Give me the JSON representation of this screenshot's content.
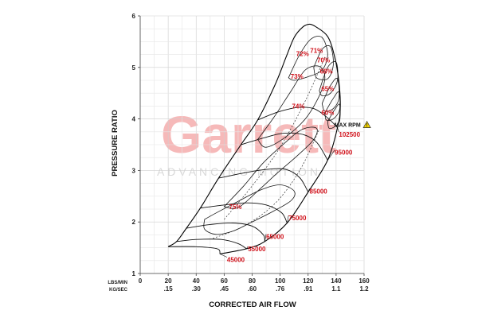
{
  "chart_data": {
    "type": "compressor-map",
    "xlabel": "CORRECTED AIR FLOW",
    "ylabel": "PRESSURE RATIO",
    "x_unit_primary": "LBS/MIN",
    "x_unit_secondary": "KG/SEC",
    "xlim": [
      0,
      160
    ],
    "ylim": [
      1,
      6
    ],
    "x_ticks": [
      0,
      20,
      40,
      60,
      80,
      100,
      120,
      140,
      160
    ],
    "x_ticks_secondary": [
      {
        "x": 20,
        "label": ".15"
      },
      {
        "x": 40,
        "label": ".30"
      },
      {
        "x": 60,
        "label": ".45"
      },
      {
        "x": 80,
        "label": ".60"
      },
      {
        "x": 100,
        "label": ".76"
      },
      {
        "x": 120,
        "label": ".91"
      },
      {
        "x": 140,
        "label": "1.1"
      },
      {
        "x": 160,
        "label": "1.2"
      }
    ],
    "y_ticks": [
      1,
      2,
      3,
      4,
      5,
      6
    ],
    "grid": true,
    "watermark": {
      "text": "Garrett",
      "subtext": "ADVANCING MOTION"
    },
    "max_rpm_label": "MAX RPM",
    "max_rpm_point": {
      "x": 141,
      "y": 3.83
    },
    "speed_lines": [
      {
        "rpm": "45000",
        "points": [
          [
            20,
            1.52
          ],
          [
            40,
            1.52
          ],
          [
            55,
            1.48
          ],
          [
            57,
            1.38
          ]
        ],
        "label_at": [
          62,
          1.27
        ]
      },
      {
        "rpm": "55000",
        "points": [
          [
            26,
            1.62
          ],
          [
            40,
            1.66
          ],
          [
            58,
            1.66
          ],
          [
            70,
            1.58
          ],
          [
            76,
            1.48
          ]
        ],
        "label_at": [
          77,
          1.48
        ]
      },
      {
        "rpm": "65000",
        "points": [
          [
            33,
            1.88
          ],
          [
            50,
            1.95
          ],
          [
            66,
            1.98
          ],
          [
            80,
            1.92
          ],
          [
            88,
            1.75
          ],
          [
            89,
            1.62
          ]
        ],
        "label_at": [
          90,
          1.72
        ]
      },
      {
        "rpm": "75000",
        "points": [
          [
            43,
            2.27
          ],
          [
            60,
            2.33
          ],
          [
            76,
            2.37
          ],
          [
            90,
            2.33
          ],
          [
            101,
            2.18
          ],
          [
            105,
            1.98
          ]
        ],
        "label_at": [
          106,
          2.08
        ]
      },
      {
        "rpm": "85000",
        "points": [
          [
            56,
            2.85
          ],
          [
            74,
            2.95
          ],
          [
            90,
            3.02
          ],
          [
            104,
            3.02
          ],
          [
            114,
            2.86
          ],
          [
            120,
            2.58
          ]
        ],
        "label_at": [
          121,
          2.6
        ]
      },
      {
        "rpm": "95000",
        "points": [
          [
            72,
            3.5
          ],
          [
            88,
            3.63
          ],
          [
            102,
            3.72
          ],
          [
            116,
            3.7
          ],
          [
            126,
            3.55
          ],
          [
            134,
            3.2
          ]
        ],
        "label_at": [
          139,
          3.35
        ]
      },
      {
        "rpm": "102500",
        "points": [
          [
            84,
            3.98
          ],
          [
            98,
            4.13
          ],
          [
            112,
            4.22
          ],
          [
            124,
            4.2
          ],
          [
            134,
            4.02
          ],
          [
            141,
            3.83
          ]
        ],
        "label_at": [
          142,
          3.7
        ]
      }
    ],
    "surge_line": [
      [
        20,
        1.52
      ],
      [
        26,
        1.62
      ],
      [
        33,
        1.88
      ],
      [
        43,
        2.27
      ],
      [
        56,
        2.85
      ],
      [
        72,
        3.5
      ],
      [
        84,
        3.98
      ],
      [
        96,
        4.64
      ],
      [
        104,
        5.18
      ],
      [
        110,
        5.58
      ],
      [
        116,
        5.78
      ],
      [
        121,
        5.84
      ],
      [
        125,
        5.8
      ]
    ],
    "choke_line": [
      [
        57,
        1.38
      ],
      [
        76,
        1.48
      ],
      [
        89,
        1.62
      ],
      [
        105,
        1.98
      ],
      [
        120,
        2.58
      ],
      [
        134,
        3.2
      ],
      [
        141,
        3.83
      ],
      [
        143,
        4.22
      ],
      [
        142,
        4.72
      ],
      [
        139,
        5.2
      ],
      [
        134,
        5.6
      ],
      [
        125,
        5.8
      ]
    ],
    "efficiency_islands": [
      {
        "label": "75%",
        "points": [
          [
            46,
            2.05
          ],
          [
            56,
            2.2
          ],
          [
            70,
            2.4
          ],
          [
            86,
            2.62
          ],
          [
            100,
            2.72
          ],
          [
            110,
            2.6
          ],
          [
            108,
            2.42
          ],
          [
            96,
            2.22
          ],
          [
            80,
            2.0
          ],
          [
            66,
            1.82
          ],
          [
            54,
            1.76
          ],
          [
            46,
            1.86
          ],
          [
            46,
            2.05
          ]
        ],
        "label_at": [
          68,
          2.25
        ]
      },
      {
        "label": "74%",
        "points": [
          [
            60,
            2.3
          ],
          [
            74,
            2.7
          ],
          [
            88,
            3.15
          ],
          [
            104,
            3.55
          ],
          [
            116,
            3.8
          ],
          [
            126,
            3.82
          ],
          [
            124,
            3.6
          ],
          [
            112,
            3.28
          ],
          [
            98,
            2.95
          ],
          [
            84,
            2.6
          ],
          [
            70,
            2.28
          ],
          [
            60,
            2.3
          ]
        ],
        "label_at": [
          113,
          4.2
        ]
      },
      {
        "label": "73%",
        "points": [
          [
            84,
            3.6
          ],
          [
            96,
            4.05
          ],
          [
            108,
            4.55
          ],
          [
            118,
            4.95
          ],
          [
            128,
            5.02
          ],
          [
            132,
            4.8
          ],
          [
            128,
            4.45
          ],
          [
            118,
            4.0
          ],
          [
            104,
            3.65
          ],
          [
            90,
            3.45
          ],
          [
            84,
            3.6
          ]
        ],
        "label_at": [
          112,
          4.78
        ]
      },
      {
        "label": "72%",
        "points": [
          [
            106,
            4.8
          ],
          [
            114,
            5.25
          ],
          [
            122,
            5.55
          ],
          [
            130,
            5.58
          ],
          [
            134,
            5.25
          ],
          [
            130,
            4.95
          ],
          [
            120,
            4.82
          ],
          [
            110,
            4.75
          ],
          [
            106,
            4.8
          ]
        ],
        "label_at": [
          116,
          5.22
        ]
      },
      {
        "label": "71%",
        "points": [
          [
            124,
            5.0
          ],
          [
            130,
            5.35
          ],
          [
            136,
            5.4
          ],
          [
            138,
            5.05
          ],
          [
            134,
            4.78
          ],
          [
            126,
            4.8
          ],
          [
            124,
            5.0
          ]
        ],
        "label_at": [
          126,
          5.28
        ]
      },
      {
        "label": "70%",
        "points": [
          [
            128,
            4.55
          ],
          [
            134,
            5.0
          ],
          [
            140,
            5.1
          ],
          [
            141,
            4.75
          ],
          [
            136,
            4.5
          ],
          [
            130,
            4.45
          ],
          [
            128,
            4.55
          ]
        ],
        "label_at": [
          131,
          5.1
        ]
      },
      {
        "label": "68%",
        "points": [
          [
            130,
            4.3
          ],
          [
            136,
            4.65
          ],
          [
            141,
            4.78
          ],
          [
            142,
            4.4
          ],
          [
            138,
            4.2
          ],
          [
            132,
            4.15
          ],
          [
            130,
            4.3
          ]
        ],
        "label_at": [
          133,
          4.88
        ]
      },
      {
        "label": "65%",
        "points": [
          [
            132,
            4.12
          ],
          [
            138,
            4.4
          ],
          [
            142,
            4.52
          ],
          [
            142.5,
            4.18
          ],
          [
            138,
            4.0
          ],
          [
            133,
            3.98
          ],
          [
            132,
            4.12
          ]
        ],
        "label_at": [
          134,
          4.54
        ]
      },
      {
        "label": "60%",
        "points": [
          [
            134,
            3.95
          ],
          [
            139,
            4.18
          ],
          [
            142.5,
            4.28
          ],
          [
            142.5,
            3.96
          ],
          [
            139,
            3.85
          ],
          [
            135,
            3.82
          ],
          [
            134,
            3.95
          ]
        ],
        "label_at": [
          134,
          4.08
        ]
      }
    ],
    "dashed_curves": [
      {
        "points": [
          [
            60,
            2.05
          ],
          [
            80,
            2.7
          ],
          [
            100,
            3.45
          ],
          [
            118,
            4.35
          ],
          [
            132,
            5.2
          ]
        ]
      },
      {
        "points": [
          [
            52,
            1.68
          ],
          [
            74,
            1.92
          ],
          [
            96,
            2.35
          ],
          [
            114,
            3.0
          ],
          [
            128,
            3.8
          ]
        ]
      }
    ]
  }
}
